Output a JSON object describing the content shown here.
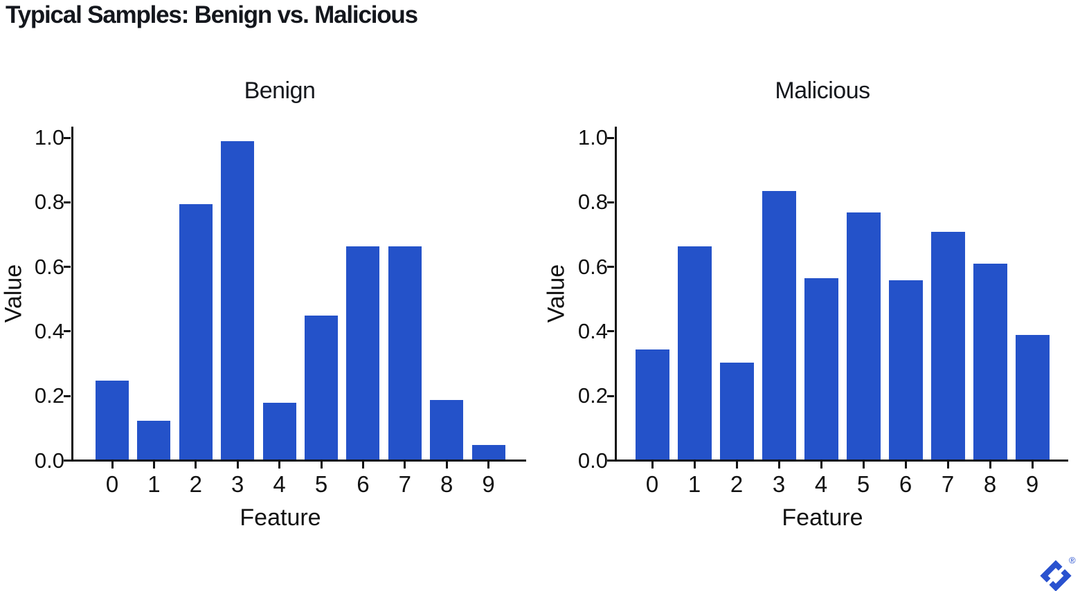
{
  "title": "Typical Samples: Benign vs. Malicious",
  "colors": {
    "bar_blue": "#2452c9",
    "axis": "#111111",
    "title_text": "#14171d",
    "logo_blue": "#2a52cf"
  },
  "logo": {
    "registered_symbol": "®"
  },
  "chart_data": [
    {
      "type": "bar",
      "title": "Benign",
      "xlabel": "Feature",
      "ylabel": "Value",
      "categories": [
        "0",
        "1",
        "2",
        "3",
        "4",
        "5",
        "6",
        "7",
        "8",
        "9"
      ],
      "values": [
        0.245,
        0.12,
        0.79,
        0.985,
        0.175,
        0.445,
        0.66,
        0.66,
        0.185,
        0.045
      ],
      "yticks": [
        "1.0",
        "0.8",
        "0.6",
        "0.4",
        "0.2",
        "0.0"
      ],
      "ylim": [
        0.0,
        1.0
      ],
      "grid": false,
      "legend": null,
      "bar_color": "#2452c9"
    },
    {
      "type": "bar",
      "title": "Malicious",
      "xlabel": "Feature",
      "ylabel": "Value",
      "categories": [
        "0",
        "1",
        "2",
        "3",
        "4",
        "5",
        "6",
        "7",
        "8",
        "9"
      ],
      "values": [
        0.34,
        0.66,
        0.3,
        0.83,
        0.56,
        0.765,
        0.555,
        0.705,
        0.605,
        0.385
      ],
      "yticks": [
        "1.0",
        "0.8",
        "0.6",
        "0.4",
        "0.2",
        "0.0"
      ],
      "ylim": [
        0.0,
        1.0
      ],
      "grid": false,
      "legend": null,
      "bar_color": "#2452c9"
    }
  ]
}
